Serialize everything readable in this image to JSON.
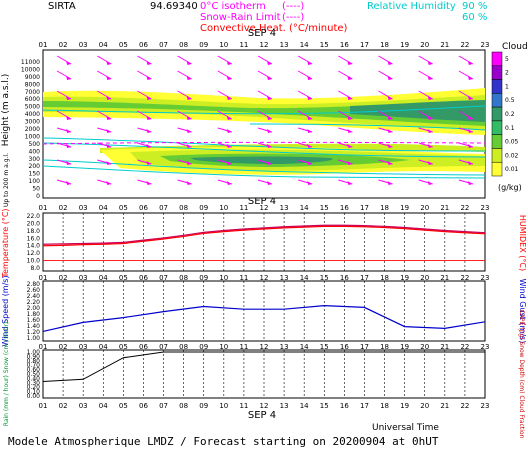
{
  "header": {
    "site": "SIRTA",
    "coords": "94.69340",
    "legend_isotherm": "0°C isotherm",
    "legend_snow_rain": "Snow-Rain Limit",
    "legend_convective": "Convective Heat. (°C/minute)",
    "legend_rh": "Relative Humidity",
    "rh_90": "90 %",
    "rh_60": "60 %"
  },
  "hours": [
    "01",
    "02",
    "03",
    "04",
    "05",
    "06",
    "07",
    "08",
    "09",
    "10",
    "11",
    "12",
    "13",
    "14",
    "15",
    "16",
    "17",
    "18",
    "19",
    "20",
    "21",
    "22",
    "23"
  ],
  "date_label": "SEP 4",
  "cloud_legend": {
    "title": "Clouds",
    "unit": "(g/kg)",
    "levels": [
      "5",
      "2",
      "1",
      "0.5",
      "0.2",
      "0.1",
      "0.05",
      "0.02",
      "0.01"
    ],
    "colors": [
      "#ff00ff",
      "#9900cc",
      "#3333cc",
      "#3377cc",
      "#339966",
      "#33bb66",
      "#66cc33",
      "#ccee22",
      "#ffff33"
    ]
  },
  "panel1": {
    "ylabel": "Height  (m a.s.l.)",
    "ylabel_low": "Up to 200 m a.g.l.",
    "ticks_km": [
      "11000",
      "10000",
      "9000",
      "8000",
      "7000",
      "6000",
      "5000",
      "4000",
      "3000",
      "2000",
      "1000",
      "500",
      "400",
      "300",
      "200",
      "150",
      "100",
      "50",
      "0"
    ]
  },
  "panel2": {
    "ylabel": "Temperature (°C)",
    "ylabel_right": "HUMIDEX (°C)",
    "ticks": [
      "22.0",
      "20.0",
      "18.0",
      "16.0",
      "14.0",
      "12.0",
      "10.0",
      "8.0"
    ]
  },
  "panel3": {
    "ylabel": "Wind Speed (m/s)",
    "ylabel_right": "Wind Gust (m/s)",
    "ticks": [
      "2.80",
      "2.60",
      "2.40",
      "2.20",
      "2.00",
      "1.80",
      "1.60",
      "1.40",
      "1.20",
      "1.00"
    ]
  },
  "panel4": {
    "ylabel": "Rain (mm / hour)  Snow (cm / hour)",
    "ylabel_right": "CAPE (J/g)  Snow Depth (cm)  Cloud Fraction",
    "ticks": [
      "1.00",
      "0.90",
      "0.80",
      "0.70",
      "0.60",
      "0.50",
      "0.40",
      "0.30",
      "0.20",
      "0.10",
      "0.00"
    ]
  },
  "footer": {
    "utc": "Universal Time",
    "title": "Modele Atmospherique LMDZ / Forecast starting on 20200904 at 0hUT"
  },
  "chart_data": [
    {
      "type": "line",
      "title": "",
      "xlabel": "Universal Time",
      "ylabel": "Temperature (°C)",
      "ylim": [
        8,
        22
      ],
      "x": [
        "01",
        "02",
        "03",
        "04",
        "05",
        "06",
        "07",
        "08",
        "09",
        "10",
        "11",
        "12",
        "13",
        "14",
        "15",
        "16",
        "17",
        "18",
        "19",
        "20",
        "21",
        "22",
        "23"
      ],
      "series": [
        {
          "name": "Temperature",
          "color": "#ff0000",
          "values": [
            14.0,
            14.1,
            14.3,
            14.4,
            14.6,
            15.2,
            15.8,
            16.5,
            17.3,
            17.8,
            18.2,
            18.5,
            18.8,
            19.0,
            19.2,
            19.2,
            19.1,
            18.9,
            18.6,
            18.2,
            17.8,
            17.5,
            17.2
          ]
        },
        {
          "name": "HUMIDEX",
          "color": "#cc0055",
          "values": [
            14.4,
            14.5,
            14.6,
            14.7,
            14.9,
            15.5,
            16.1,
            16.8,
            17.6,
            18.1,
            18.5,
            18.8,
            19.1,
            19.3,
            19.5,
            19.5,
            19.4,
            19.2,
            18.9,
            18.5,
            18.1,
            17.8,
            17.5
          ]
        }
      ]
    },
    {
      "type": "line",
      "title": "",
      "xlabel": "Universal Time",
      "ylabel": "Wind Speed (m/s)",
      "ylim": [
        1.0,
        2.8
      ],
      "x": [
        "01",
        "03",
        "05",
        "07",
        "09",
        "11",
        "13",
        "15",
        "17",
        "19",
        "21",
        "23"
      ],
      "series": [
        {
          "name": "Wind Speed",
          "color": "#0000cc",
          "values": [
            1.22,
            1.52,
            1.68,
            1.88,
            2.05,
            1.96,
            1.96,
            2.08,
            2.02,
            1.38,
            1.32,
            1.54
          ]
        }
      ]
    },
    {
      "type": "line",
      "title": "",
      "xlabel": "Universal Time",
      "ylabel": "Rain (mm/hour)",
      "ylim": [
        0,
        1.0
      ],
      "x": [
        "01",
        "03",
        "05",
        "07",
        "09",
        "11",
        "13",
        "15",
        "17",
        "19",
        "21",
        "23"
      ],
      "series": [
        {
          "name": "Rain",
          "color": "#000000",
          "values": [
            0.33,
            0.38,
            0.87,
            1.0,
            1.0,
            1.0,
            1.0,
            1.0,
            1.0,
            1.0,
            1.0,
            1.0
          ]
        }
      ]
    }
  ]
}
